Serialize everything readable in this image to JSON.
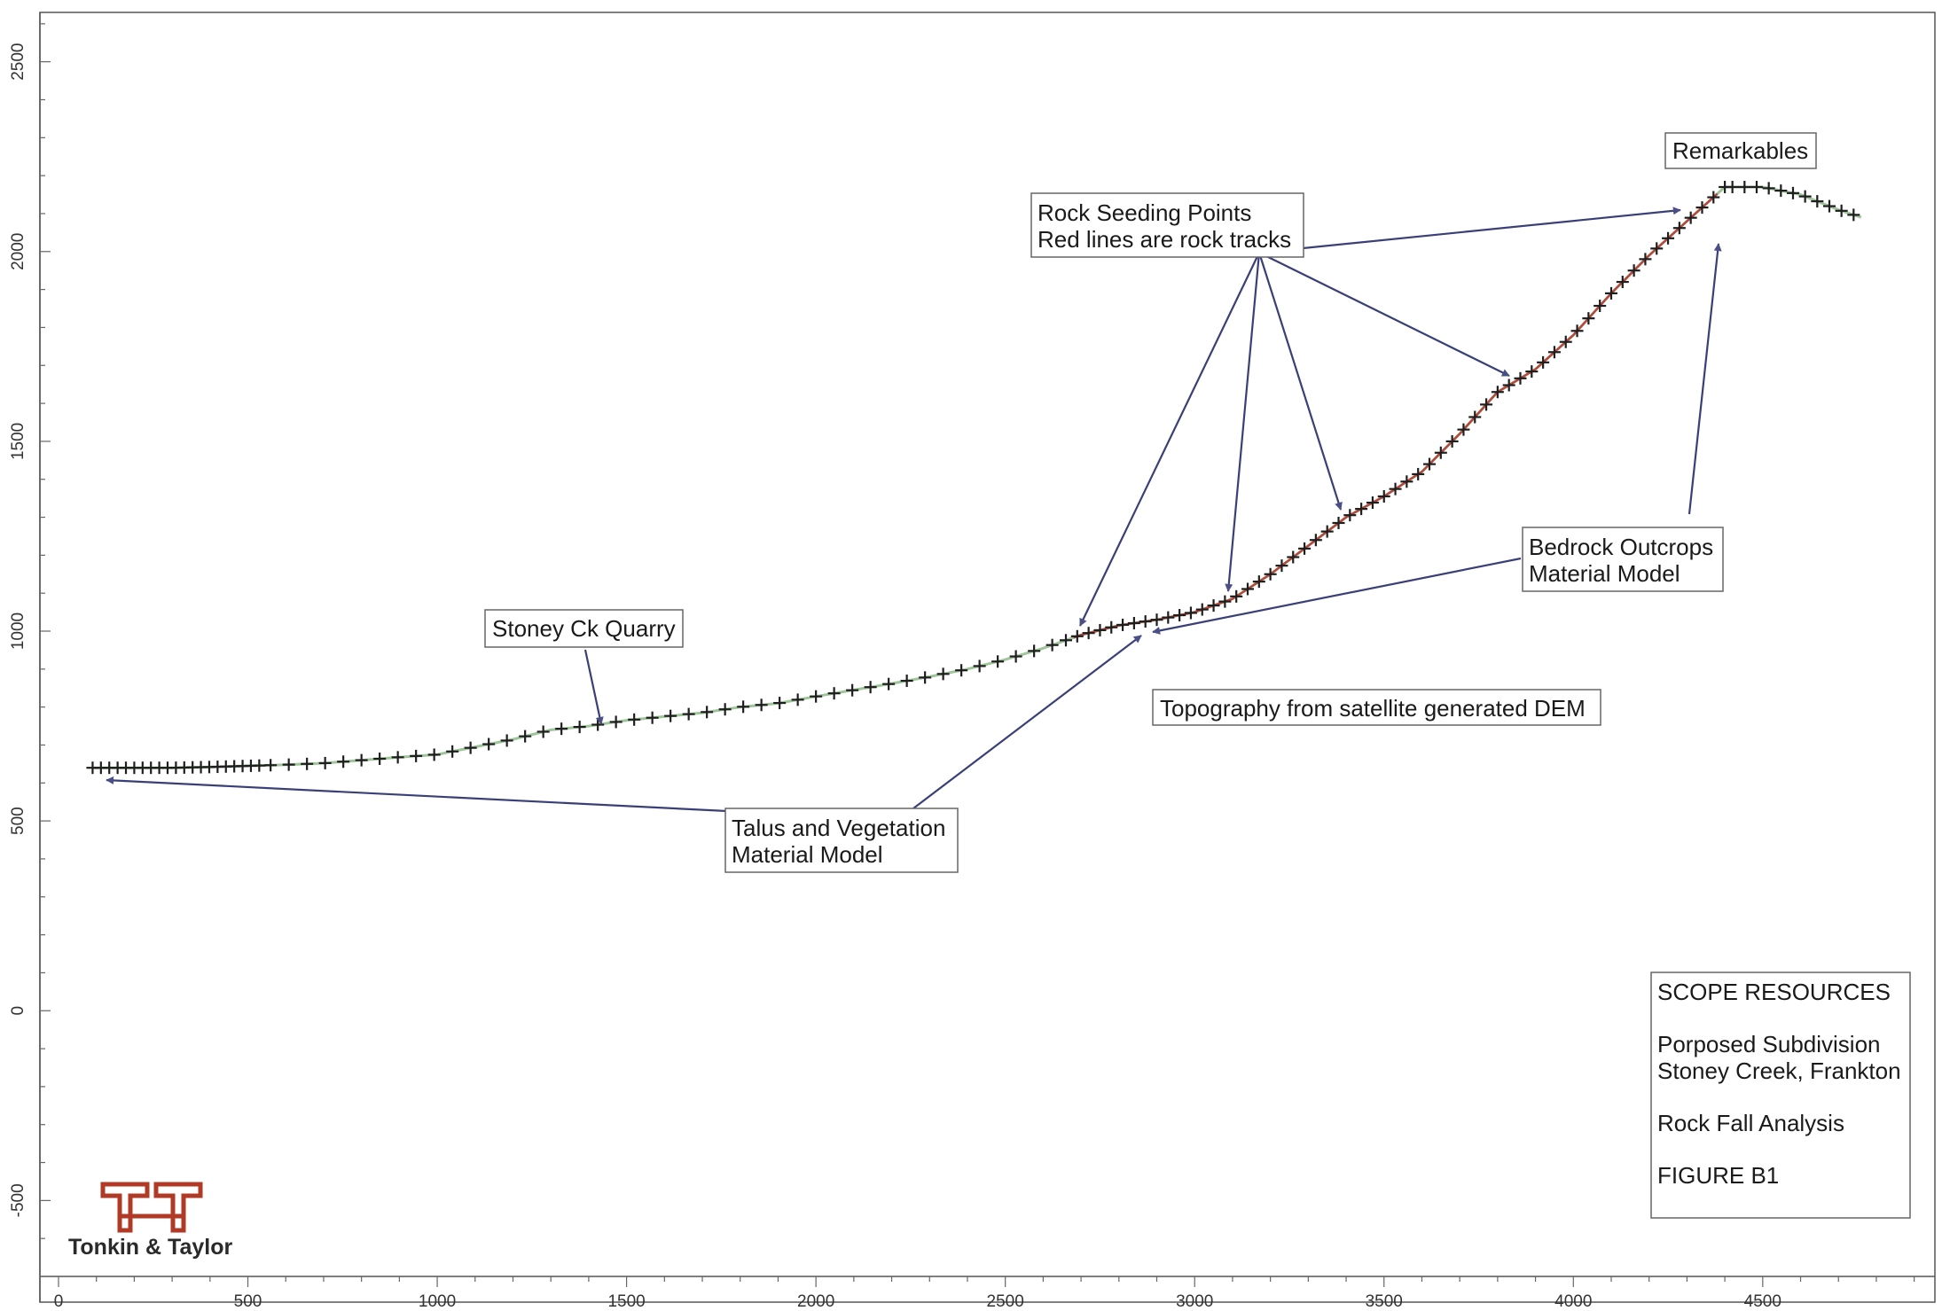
{
  "chart_data": {
    "type": "line",
    "title": "",
    "xlabel": "",
    "ylabel": "",
    "xlim": [
      0,
      4950
    ],
    "ylim": [
      -700,
      2630
    ],
    "x_ticks": [
      0,
      500,
      1000,
      1500,
      2000,
      2500,
      3000,
      3500,
      4000,
      4500
    ],
    "y_ticks": [
      -500,
      0,
      500,
      1000,
      1500,
      2000,
      2500
    ],
    "grid": false,
    "series": [
      {
        "name": "",
        "x": [
          90,
          200,
          300,
          400,
          500,
          600,
          700,
          800,
          900,
          1000,
          1100,
          1200,
          1300,
          1400,
          1500,
          1600,
          1700,
          1800,
          1900,
          2000,
          2100,
          2200,
          2300,
          2400,
          2500,
          2600,
          2700,
          2800,
          2900,
          3000,
          3100,
          3200,
          3300,
          3400,
          3500,
          3600,
          3700,
          3800,
          3900,
          4000,
          4100,
          4200,
          4300,
          4400,
          4500,
          4600,
          4700,
          4760
        ],
        "y": [
          640,
          640,
          640,
          642,
          645,
          648,
          652,
          660,
          668,
          675,
          695,
          715,
          740,
          750,
          765,
          775,
          785,
          800,
          810,
          828,
          845,
          862,
          880,
          900,
          925,
          955,
          990,
          1015,
          1030,
          1050,
          1085,
          1150,
          1225,
          1300,
          1355,
          1420,
          1520,
          1630,
          1690,
          1780,
          1890,
          1990,
          2080,
          2170,
          2170,
          2150,
          2110,
          2090
        ]
      }
    ],
    "rock_track_x_range": [
      2680,
      4380
    ],
    "annotations": [
      {
        "id": "remarkables",
        "lines": [
          "Remarkables"
        ]
      },
      {
        "id": "rock_seeding",
        "lines": [
          "Rock Seeding Points",
          "Red lines are rock tracks"
        ]
      },
      {
        "id": "stoney_quarry",
        "lines": [
          "Stoney Ck Quarry"
        ]
      },
      {
        "id": "bedrock",
        "lines": [
          "Bedrock Outcrops",
          "Material Model"
        ]
      },
      {
        "id": "topography",
        "lines": [
          "Topography from satellite generated DEM"
        ]
      },
      {
        "id": "talus",
        "lines": [
          "Talus and Vegetation",
          "Material Model"
        ]
      }
    ]
  },
  "title_block": {
    "client": "SCOPE RESOURCES",
    "project_line1": "Porposed Subdivision",
    "project_line2": "Stoney Creek, Frankton",
    "analysis": "Rock Fall Analysis",
    "figure": "FIGURE B1"
  },
  "logo": {
    "name": "Tonkin & Taylor",
    "color": "#b03a26"
  },
  "colors": {
    "profile": "#9fc59a",
    "rock_tracks": "#b5473c",
    "arrows": "#3a3f78"
  }
}
